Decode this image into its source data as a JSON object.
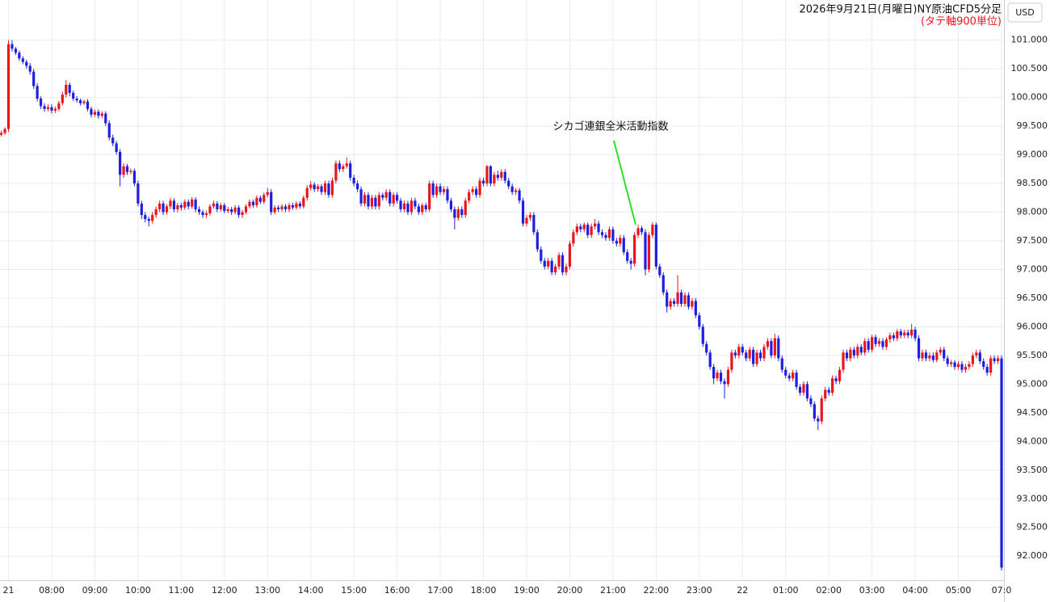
{
  "chart_data": {
    "type": "candlestick",
    "title": "2026年9月21日(月曜日)NY原油CFD5分足",
    "subtitle": "(タテ軸900単位)",
    "y_axis_label": "USD",
    "annotation": "シカゴ連銀全米活動指数",
    "up_color": "#e8161b",
    "down_color": "#1e1ee0",
    "annotation_color": "#33dd22",
    "grid": true,
    "ylim": [
      91.58,
      101.7
    ],
    "yticks": [
      {
        "value": 92,
        "label": "92.000"
      },
      {
        "value": 92.5,
        "label": "92.500"
      },
      {
        "value": 93,
        "label": "93.000"
      },
      {
        "value": 93.5,
        "label": "93.500"
      },
      {
        "value": 94,
        "label": "94.000"
      },
      {
        "value": 94.5,
        "label": "94.500"
      },
      {
        "value": 95,
        "label": "95.000"
      },
      {
        "value": 95.5,
        "label": "95.500"
      },
      {
        "value": 96,
        "label": "96.000"
      },
      {
        "value": 96.5,
        "label": "96.500"
      },
      {
        "value": 97,
        "label": "97.000"
      },
      {
        "value": 97.5,
        "label": "97.500"
      },
      {
        "value": 98,
        "label": "98.000"
      },
      {
        "value": 98.5,
        "label": "98.500"
      },
      {
        "value": 99,
        "label": "99.000"
      },
      {
        "value": 99.5,
        "label": "99.500"
      },
      {
        "value": 100,
        "label": "100.000"
      },
      {
        "value": 100.5,
        "label": "100.500"
      },
      {
        "value": 101,
        "label": "101.000"
      }
    ],
    "categories": [
      null,
      null,
      "21",
      null,
      null,
      null,
      null,
      null,
      null,
      null,
      null,
      null,
      null,
      null,
      "08:00",
      null,
      null,
      null,
      null,
      null,
      null,
      null,
      null,
      null,
      null,
      null,
      "09:00",
      null,
      null,
      null,
      null,
      null,
      null,
      null,
      null,
      null,
      null,
      null,
      "10:00",
      null,
      null,
      null,
      null,
      null,
      null,
      null,
      null,
      null,
      null,
      null,
      "11:00",
      null,
      null,
      null,
      null,
      null,
      null,
      null,
      null,
      null,
      null,
      null,
      "12:00",
      null,
      null,
      null,
      null,
      null,
      null,
      null,
      null,
      null,
      null,
      null,
      "13:00",
      null,
      null,
      null,
      null,
      null,
      null,
      null,
      null,
      null,
      null,
      null,
      "14:00",
      null,
      null,
      null,
      null,
      null,
      null,
      null,
      null,
      null,
      null,
      null,
      "15:00",
      null,
      null,
      null,
      null,
      null,
      null,
      null,
      null,
      null,
      null,
      null,
      "16:00",
      null,
      null,
      null,
      null,
      null,
      null,
      null,
      null,
      null,
      null,
      null,
      "17:00",
      null,
      null,
      null,
      null,
      null,
      null,
      null,
      null,
      null,
      null,
      null,
      "18:00",
      null,
      null,
      null,
      null,
      null,
      null,
      null,
      null,
      null,
      null,
      null,
      "19:00",
      null,
      null,
      null,
      null,
      null,
      null,
      null,
      null,
      null,
      null,
      null,
      "20:00",
      null,
      null,
      null,
      null,
      null,
      null,
      null,
      null,
      null,
      null,
      null,
      "21:00",
      null,
      null,
      null,
      null,
      null,
      null,
      null,
      null,
      null,
      null,
      null,
      "22:00",
      null,
      null,
      null,
      null,
      null,
      null,
      null,
      null,
      null,
      null,
      null,
      "23:00",
      null,
      null,
      null,
      null,
      null,
      null,
      null,
      null,
      null,
      null,
      null,
      "22",
      null,
      null,
      null,
      null,
      null,
      null,
      null,
      null,
      null,
      null,
      null,
      "01:00",
      null,
      null,
      null,
      null,
      null,
      null,
      null,
      null,
      null,
      null,
      null,
      "02:00",
      null,
      null,
      null,
      null,
      null,
      null,
      null,
      null,
      null,
      null,
      null,
      "03:00",
      null,
      null,
      null,
      null,
      null,
      null,
      null,
      null,
      null,
      null,
      null,
      "04:00",
      null,
      null,
      null,
      null,
      null,
      null,
      null,
      null,
      null,
      null,
      null,
      "05:00",
      null,
      null,
      null,
      null,
      null,
      null,
      null,
      null,
      null,
      null,
      null,
      "07:0"
    ],
    "open": [
      99.35,
      99.38,
      99.45,
      100.93,
      100.85,
      100.78,
      100.68,
      100.62,
      100.55,
      100.45,
      100.2,
      99.98,
      99.85,
      99.8,
      99.83,
      99.77,
      99.8,
      99.9,
      100.05,
      100.22,
      100.08,
      99.98,
      99.95,
      99.9,
      99.93,
      99.8,
      99.7,
      99.75,
      99.68,
      99.72,
      99.55,
      99.3,
      99.2,
      99.05,
      98.65,
      98.8,
      98.7,
      98.72,
      98.5,
      98.15,
      97.95,
      97.88,
      97.85,
      97.95,
      98.05,
      98.15,
      98.0,
      98.1,
      98.2,
      98.05,
      98.12,
      98.08,
      98.18,
      98.1,
      98.22,
      98.05,
      98.0,
      97.95,
      97.98,
      98.1,
      98.15,
      98.05,
      98.12,
      98.02,
      98.05,
      98.0,
      98.08,
      97.95,
      98.0,
      98.1,
      98.18,
      98.12,
      98.25,
      98.18,
      98.3,
      98.35,
      98.0,
      98.08,
      98.05,
      98.1,
      98.05,
      98.12,
      98.08,
      98.15,
      98.1,
      98.25,
      98.42,
      98.48,
      98.4,
      98.45,
      98.35,
      98.5,
      98.3,
      98.55,
      98.85,
      98.75,
      98.8,
      98.85,
      98.6,
      98.5,
      98.4,
      98.15,
      98.3,
      98.1,
      98.25,
      98.1,
      98.3,
      98.25,
      98.35,
      98.15,
      98.3,
      98.2,
      98.05,
      98.15,
      98.0,
      98.2,
      98.1,
      98.0,
      98.12,
      98.05,
      98.5,
      98.3,
      98.45,
      98.35,
      98.4,
      98.2,
      98.05,
      97.9,
      98.05,
      97.95,
      98.2,
      98.35,
      98.4,
      98.3,
      98.55,
      98.5,
      98.8,
      98.5,
      98.65,
      98.6,
      98.7,
      98.55,
      98.45,
      98.35,
      98.38,
      98.2,
      97.8,
      97.9,
      97.95,
      97.65,
      97.35,
      97.15,
      97.05,
      97.15,
      96.95,
      97.05,
      97.25,
      96.95,
      97.05,
      97.45,
      97.65,
      97.75,
      97.7,
      97.78,
      97.6,
      97.75,
      97.8,
      97.65,
      97.6,
      97.55,
      97.7,
      97.5,
      97.45,
      97.55,
      97.3,
      97.15,
      97.1,
      97.6,
      97.72,
      97.65,
      97.0,
      97.6,
      97.78,
      97.05,
      96.9,
      96.6,
      96.35,
      96.45,
      96.4,
      96.6,
      96.4,
      96.55,
      96.35,
      96.45,
      96.2,
      96.0,
      95.7,
      95.55,
      95.3,
      95.1,
      95.2,
      95.05,
      95.0,
      95.25,
      95.55,
      95.5,
      95.65,
      95.55,
      95.45,
      95.6,
      95.35,
      95.55,
      95.45,
      95.65,
      95.75,
      95.5,
      95.8,
      95.45,
      95.25,
      95.15,
      95.1,
      95.2,
      94.95,
      94.85,
      95.0,
      94.75,
      94.65,
      94.4,
      94.35,
      94.75,
      94.9,
      94.85,
      95.1,
      95.05,
      95.25,
      95.55,
      95.45,
      95.6,
      95.5,
      95.65,
      95.55,
      95.75,
      95.6,
      95.82,
      95.7,
      95.75,
      95.65,
      95.78,
      95.85,
      95.8,
      95.92,
      95.85,
      95.9,
      95.85,
      95.95,
      95.8,
      95.45,
      95.55,
      95.45,
      95.5,
      95.42,
      95.55,
      95.6,
      95.45,
      95.35,
      95.38,
      95.3,
      95.35,
      95.25,
      95.3,
      95.35,
      95.5,
      95.55,
      95.4,
      95.3,
      95.2,
      95.45,
      95.4,
      95.45
    ],
    "high": [
      99.42,
      99.48,
      101.0,
      101.0,
      100.88,
      100.82,
      100.72,
      100.66,
      100.6,
      100.5,
      100.25,
      100.02,
      99.9,
      99.88,
      99.88,
      99.84,
      99.94,
      100.1,
      100.3,
      100.26,
      100.12,
      100.02,
      99.98,
      99.96,
      99.97,
      99.84,
      99.79,
      99.79,
      99.76,
      99.76,
      99.6,
      99.35,
      99.24,
      99.1,
      98.85,
      98.84,
      98.76,
      98.76,
      98.55,
      98.2,
      98.0,
      97.92,
      98.0,
      98.1,
      98.2,
      98.2,
      98.14,
      98.25,
      98.24,
      98.16,
      98.16,
      98.22,
      98.22,
      98.26,
      98.26,
      98.1,
      98.04,
      98.02,
      98.14,
      98.2,
      98.19,
      98.16,
      98.16,
      98.09,
      98.09,
      98.12,
      98.12,
      98.04,
      98.14,
      98.22,
      98.22,
      98.29,
      98.29,
      98.34,
      98.42,
      98.4,
      98.12,
      98.12,
      98.14,
      98.14,
      98.16,
      98.16,
      98.19,
      98.19,
      98.29,
      98.47,
      98.54,
      98.52,
      98.49,
      98.49,
      98.55,
      98.55,
      98.6,
      98.9,
      98.9,
      98.84,
      98.95,
      98.9,
      98.65,
      98.55,
      98.45,
      98.35,
      98.35,
      98.3,
      98.3,
      98.35,
      98.34,
      98.4,
      98.4,
      98.35,
      98.35,
      98.25,
      98.2,
      98.2,
      98.25,
      98.25,
      98.15,
      98.16,
      98.16,
      98.55,
      98.55,
      98.5,
      98.5,
      98.45,
      98.45,
      98.25,
      98.1,
      98.1,
      98.1,
      98.25,
      98.4,
      98.45,
      98.45,
      98.6,
      98.6,
      98.82,
      98.82,
      98.7,
      98.72,
      98.75,
      98.75,
      98.6,
      98.5,
      98.42,
      98.42,
      98.25,
      97.95,
      98.0,
      98.0,
      97.7,
      97.4,
      97.2,
      97.2,
      97.2,
      97.1,
      97.3,
      97.3,
      97.1,
      97.5,
      97.7,
      97.8,
      97.8,
      97.82,
      97.82,
      97.8,
      97.88,
      97.85,
      97.7,
      97.65,
      97.75,
      97.75,
      97.55,
      97.6,
      97.6,
      97.35,
      97.2,
      97.65,
      97.78,
      97.76,
      97.7,
      97.65,
      97.82,
      97.82,
      97.1,
      96.95,
      96.65,
      96.5,
      96.5,
      96.9,
      96.65,
      96.6,
      96.6,
      96.5,
      96.5,
      96.25,
      96.05,
      95.75,
      95.6,
      95.35,
      95.25,
      95.25,
      95.1,
      95.3,
      95.6,
      95.6,
      95.7,
      95.7,
      95.6,
      95.65,
      95.65,
      95.6,
      95.6,
      95.7,
      95.8,
      95.8,
      95.88,
      95.85,
      95.5,
      95.3,
      95.2,
      95.25,
      95.25,
      95.0,
      95.05,
      95.05,
      94.8,
      94.7,
      94.45,
      94.8,
      94.95,
      94.95,
      95.15,
      95.15,
      95.3,
      95.6,
      95.6,
      95.65,
      95.65,
      95.7,
      95.7,
      95.8,
      95.8,
      95.86,
      95.86,
      95.8,
      95.8,
      95.82,
      95.9,
      95.9,
      95.96,
      95.96,
      95.95,
      95.95,
      96.05,
      96.0,
      95.85,
      95.6,
      95.6,
      95.55,
      95.55,
      95.6,
      95.65,
      95.65,
      95.5,
      95.42,
      95.42,
      95.4,
      95.4,
      95.35,
      95.4,
      95.55,
      95.6,
      95.6,
      95.45,
      95.35,
      95.5,
      95.5,
      95.5,
      95.5
    ],
    "low": [
      99.32,
      99.35,
      99.4,
      100.8,
      100.74,
      100.64,
      100.58,
      100.5,
      100.4,
      100.15,
      99.93,
      99.8,
      99.75,
      99.76,
      99.72,
      99.73,
      99.76,
      99.86,
      100.0,
      100.02,
      99.94,
      99.91,
      99.86,
      99.87,
      99.76,
      99.65,
      99.66,
      99.63,
      99.64,
      99.5,
      99.25,
      99.15,
      99.0,
      98.45,
      98.6,
      98.65,
      98.66,
      98.45,
      98.1,
      97.88,
      97.82,
      97.75,
      97.8,
      97.9,
      98.0,
      97.95,
      97.96,
      98.05,
      98.0,
      98.0,
      98.03,
      98.04,
      98.05,
      98.06,
      98.0,
      97.95,
      97.9,
      97.9,
      97.94,
      98.06,
      98.0,
      98.01,
      97.98,
      97.98,
      97.95,
      97.96,
      97.9,
      97.9,
      97.96,
      98.06,
      98.08,
      98.08,
      98.14,
      98.14,
      98.26,
      97.95,
      97.96,
      98.0,
      98.01,
      98.0,
      98.0,
      98.04,
      98.04,
      98.06,
      98.06,
      98.2,
      98.38,
      98.35,
      98.36,
      98.3,
      98.3,
      98.25,
      98.25,
      98.5,
      98.7,
      98.7,
      98.76,
      98.55,
      98.45,
      98.35,
      98.1,
      98.1,
      98.05,
      98.05,
      98.05,
      98.05,
      98.2,
      98.2,
      98.1,
      98.1,
      98.15,
      98.0,
      98.0,
      97.95,
      97.95,
      98.05,
      97.95,
      97.95,
      98.0,
      98.0,
      98.25,
      98.25,
      98.3,
      98.3,
      98.15,
      98.0,
      97.7,
      97.85,
      97.9,
      97.9,
      98.15,
      98.3,
      98.25,
      98.25,
      98.45,
      98.45,
      98.45,
      98.45,
      98.55,
      98.55,
      98.5,
      98.4,
      98.3,
      98.3,
      98.15,
      97.75,
      97.75,
      97.85,
      97.6,
      97.3,
      97.1,
      97.0,
      97.0,
      96.9,
      96.9,
      97.0,
      96.9,
      96.9,
      97.0,
      97.4,
      97.6,
      97.65,
      97.65,
      97.55,
      97.55,
      97.7,
      97.6,
      97.55,
      97.5,
      97.5,
      97.45,
      97.4,
      97.4,
      97.25,
      97.1,
      97.0,
      97.05,
      97.55,
      97.6,
      96.9,
      96.95,
      97.55,
      97.0,
      96.85,
      96.55,
      96.25,
      96.3,
      96.35,
      96.35,
      96.35,
      96.35,
      96.3,
      96.3,
      96.15,
      95.95,
      95.65,
      95.5,
      95.25,
      95.0,
      95.05,
      95.0,
      94.75,
      94.95,
      95.2,
      95.45,
      95.45,
      95.5,
      95.4,
      95.4,
      95.3,
      95.3,
      95.4,
      95.4,
      95.6,
      95.45,
      95.45,
      95.4,
      95.2,
      95.1,
      95.05,
      95.05,
      94.9,
      94.8,
      94.8,
      94.7,
      94.6,
      94.35,
      94.2,
      94.3,
      94.7,
      94.8,
      94.8,
      95.0,
      95.0,
      95.2,
      95.4,
      95.4,
      95.45,
      95.45,
      95.5,
      95.5,
      95.55,
      95.55,
      95.65,
      95.65,
      95.6,
      95.6,
      95.72,
      95.75,
      95.75,
      95.8,
      95.8,
      95.8,
      95.8,
      95.75,
      95.4,
      95.4,
      95.4,
      95.4,
      95.38,
      95.38,
      95.5,
      95.4,
      95.3,
      95.3,
      95.25,
      95.25,
      95.2,
      95.2,
      95.25,
      95.3,
      95.45,
      95.35,
      95.25,
      95.15,
      95.15,
      95.35,
      95.35,
      91.75
    ],
    "close": [
      99.38,
      99.45,
      100.93,
      100.85,
      100.78,
      100.68,
      100.62,
      100.55,
      100.45,
      100.2,
      99.98,
      99.85,
      99.8,
      99.83,
      99.77,
      99.8,
      99.9,
      100.05,
      100.22,
      100.08,
      99.98,
      99.95,
      99.9,
      99.93,
      99.8,
      99.7,
      99.75,
      99.68,
      99.72,
      99.55,
      99.3,
      99.2,
      99.05,
      98.65,
      98.8,
      98.7,
      98.72,
      98.5,
      98.15,
      97.95,
      97.88,
      97.85,
      97.95,
      98.05,
      98.15,
      98.0,
      98.1,
      98.2,
      98.05,
      98.12,
      98.08,
      98.18,
      98.1,
      98.22,
      98.05,
      98.0,
      97.95,
      97.98,
      98.1,
      98.15,
      98.05,
      98.12,
      98.02,
      98.05,
      98.0,
      98.08,
      97.95,
      98.0,
      98.1,
      98.18,
      98.12,
      98.25,
      98.18,
      98.3,
      98.35,
      98.0,
      98.08,
      98.05,
      98.1,
      98.05,
      98.12,
      98.08,
      98.15,
      98.1,
      98.25,
      98.42,
      98.48,
      98.4,
      98.45,
      98.35,
      98.5,
      98.3,
      98.55,
      98.85,
      98.75,
      98.8,
      98.85,
      98.6,
      98.5,
      98.4,
      98.15,
      98.3,
      98.1,
      98.25,
      98.1,
      98.3,
      98.25,
      98.35,
      98.15,
      98.3,
      98.2,
      98.05,
      98.15,
      98.0,
      98.2,
      98.1,
      98.0,
      98.12,
      98.05,
      98.5,
      98.3,
      98.45,
      98.35,
      98.4,
      98.2,
      98.05,
      97.9,
      98.05,
      97.95,
      98.2,
      98.35,
      98.4,
      98.3,
      98.55,
      98.5,
      98.8,
      98.5,
      98.65,
      98.6,
      98.7,
      98.55,
      98.45,
      98.35,
      98.38,
      98.2,
      97.8,
      97.9,
      97.95,
      97.65,
      97.35,
      97.15,
      97.05,
      97.15,
      96.95,
      97.05,
      97.25,
      96.95,
      97.05,
      97.45,
      97.65,
      97.75,
      97.7,
      97.78,
      97.6,
      97.75,
      97.8,
      97.65,
      97.6,
      97.55,
      97.7,
      97.5,
      97.45,
      97.55,
      97.3,
      97.15,
      97.1,
      97.6,
      97.72,
      97.65,
      97.0,
      97.6,
      97.78,
      97.05,
      96.9,
      96.6,
      96.35,
      96.45,
      96.4,
      96.6,
      96.4,
      96.55,
      96.35,
      96.45,
      96.2,
      96.0,
      95.7,
      95.55,
      95.3,
      95.1,
      95.2,
      95.05,
      95.0,
      95.25,
      95.55,
      95.5,
      95.65,
      95.55,
      95.45,
      95.6,
      95.35,
      95.55,
      95.45,
      95.65,
      95.75,
      95.5,
      95.8,
      95.45,
      95.25,
      95.15,
      95.1,
      95.2,
      94.95,
      94.85,
      95.0,
      94.75,
      94.65,
      94.4,
      94.35,
      94.75,
      94.9,
      94.85,
      95.1,
      95.05,
      95.25,
      95.55,
      95.45,
      95.6,
      95.5,
      95.65,
      95.55,
      95.75,
      95.6,
      95.82,
      95.7,
      95.75,
      95.65,
      95.78,
      95.85,
      95.8,
      95.92,
      95.85,
      95.9,
      95.85,
      95.95,
      95.8,
      95.45,
      95.55,
      95.45,
      95.5,
      95.42,
      95.55,
      95.6,
      95.45,
      95.35,
      95.38,
      95.3,
      95.35,
      95.25,
      95.3,
      95.35,
      95.5,
      95.55,
      95.4,
      95.3,
      95.2,
      95.45,
      95.4,
      95.45,
      91.8
    ]
  }
}
